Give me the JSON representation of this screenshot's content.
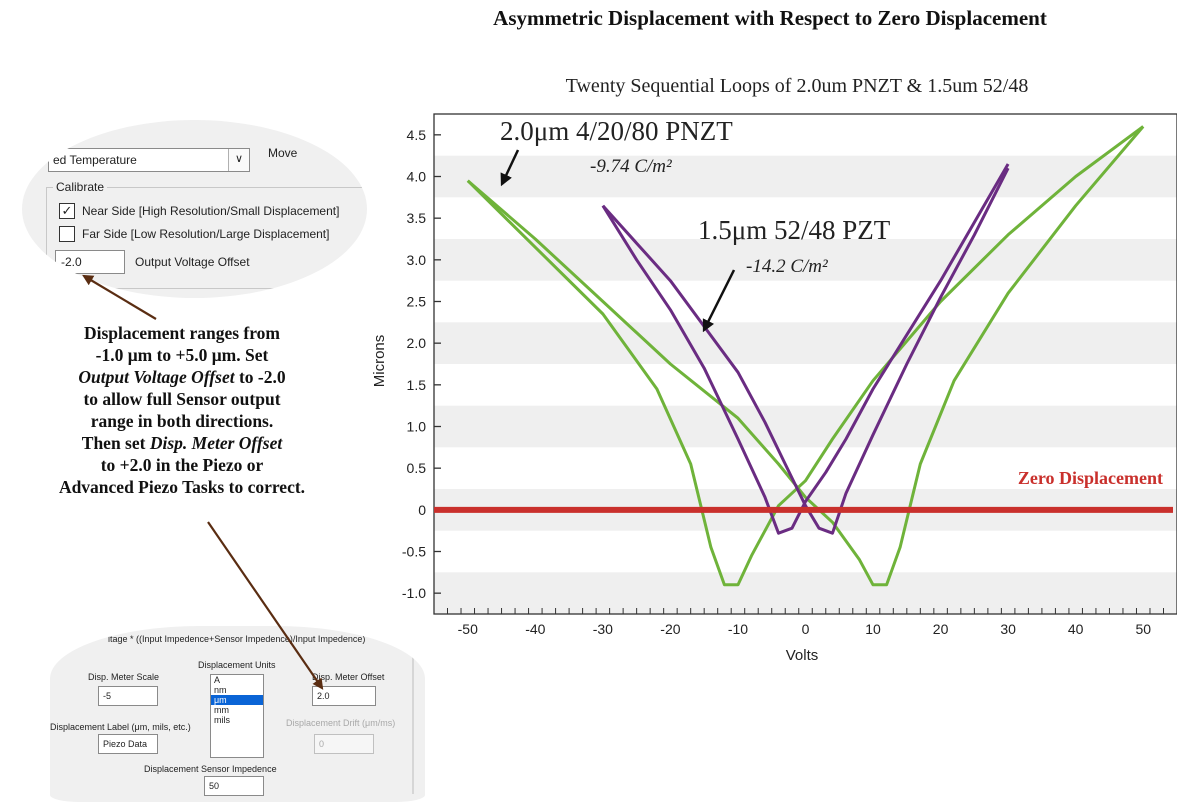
{
  "page": {
    "title": "Asymmetric Displacement with Respect to Zero Displacement",
    "note": {
      "l1": "Displacement ranges from",
      "l2": "-1.0 μm to +5.0 μm. Set",
      "l3a": "Output Voltage Offset",
      "l3b": " to -2.0",
      "l4": "to allow full Sensor output",
      "l5": "range in both directions.",
      "l6a": "Then set ",
      "l6b": "Disp. Meter Offset",
      "l7": "to +2.0 in the Piezo or",
      "l8": "Advanced Piezo Tasks to correct."
    }
  },
  "calibrate_panel": {
    "combo_value": "ed Temperature",
    "move_label": "Move",
    "group_title": "Calibrate",
    "near_side": {
      "label": "Near Side [High Resolution/Small Displacement]",
      "checked": true
    },
    "far_side": {
      "label": "Far Side [Low Resolution/Large Displacement]",
      "checked": false
    },
    "offset_value": "-2.0",
    "offset_label": "Output Voltage Offset"
  },
  "display_panel": {
    "formula": "ltage * ((Input Impedence+Sensor Impedence)/Input Impedence)",
    "units_label": "Displacement Units",
    "units_options": [
      "A",
      "nm",
      "μm",
      "mm",
      "mils"
    ],
    "units_selected": "μm",
    "scale_label": "Disp. Meter Scale",
    "scale_value": "-5",
    "offset_label": "Disp. Meter Offset",
    "offset_value": "2.0",
    "disp_label_label": "Displacement Label (μm, mils, etc.)",
    "disp_label_value": "Piezo Data",
    "drift_label": "Displacement Drift (μm/ms)",
    "drift_value": "0",
    "sensor_imp_label": "Displacement Sensor Impedence",
    "sensor_imp_value": "50"
  },
  "chart_data": {
    "type": "line",
    "title": "Twenty Sequential Loops of 2.0um PNZT & 1.5um 52/48",
    "xlabel": "Volts",
    "ylabel": "Microns",
    "xlim": [
      -55,
      55
    ],
    "ylim": [
      -1.25,
      4.75
    ],
    "xticks": [
      -50,
      -40,
      -30,
      -20,
      -10,
      0,
      10,
      20,
      30,
      40,
      50
    ],
    "yticks": [
      -1.0,
      -0.5,
      0,
      0.5,
      1.0,
      1.5,
      2.0,
      2.5,
      3.0,
      3.5,
      4.0,
      4.5
    ],
    "grid": "horizontal bands",
    "zero_line": {
      "value": 0,
      "label": "Zero Displacement",
      "color": "#c9302c"
    },
    "annotations": [
      {
        "title": "2.0μm 4/20/80 PNZT",
        "subtitle": "-9.74 C/m²"
      },
      {
        "title": "1.5μm 52/48 PZT",
        "subtitle": "-14.2 C/m²"
      }
    ],
    "series": [
      {
        "group": "2.0μm 4/20/80 PNZT",
        "color": "#6fb33a",
        "loops": [
          {
            "x": [
              -50,
              -40,
              -30,
              -22,
              -17,
              -14,
              -12,
              -10,
              -8,
              -4,
              0,
              4,
              10,
              20,
              30,
              40,
              50
            ],
            "y": [
              3.95,
              3.15,
              2.35,
              1.45,
              0.55,
              -0.45,
              -0.9,
              -0.9,
              -0.55,
              0.05,
              0.35,
              0.85,
              1.55,
              2.5,
              3.3,
              4.0,
              4.6
            ]
          },
          {
            "x": [
              50,
              40,
              30,
              22,
              17,
              14,
              12,
              10,
              8,
              4,
              0,
              -4,
              -10,
              -20,
              -30,
              -40,
              -50
            ],
            "y": [
              4.6,
              3.65,
              2.6,
              1.55,
              0.55,
              -0.45,
              -0.9,
              -0.9,
              -0.6,
              -0.15,
              0.15,
              0.55,
              1.1,
              1.75,
              2.5,
              3.25,
              3.95
            ]
          }
        ]
      },
      {
        "group": "1.5μm 52/48 PZT",
        "color": "#6a2c82",
        "loops": [
          {
            "x": [
              -30,
              -25,
              -20,
              -15,
              -10,
              -6,
              -4,
              -2,
              0,
              3,
              6,
              10,
              15,
              20,
              25,
              30
            ],
            "y": [
              3.65,
              3.0,
              2.4,
              1.7,
              0.85,
              0.15,
              -0.28,
              -0.22,
              0.1,
              0.45,
              0.85,
              1.45,
              2.1,
              2.75,
              3.45,
              4.15
            ]
          },
          {
            "x": [
              30,
              25,
              20,
              15,
              10,
              6,
              4,
              2,
              0,
              -3,
              -6,
              -10,
              -15,
              -20,
              -25,
              -30
            ],
            "y": [
              4.1,
              3.3,
              2.55,
              1.75,
              0.9,
              0.2,
              -0.28,
              -0.22,
              0.05,
              0.55,
              1.05,
              1.65,
              2.2,
              2.75,
              3.2,
              3.65
            ]
          }
        ]
      }
    ]
  }
}
